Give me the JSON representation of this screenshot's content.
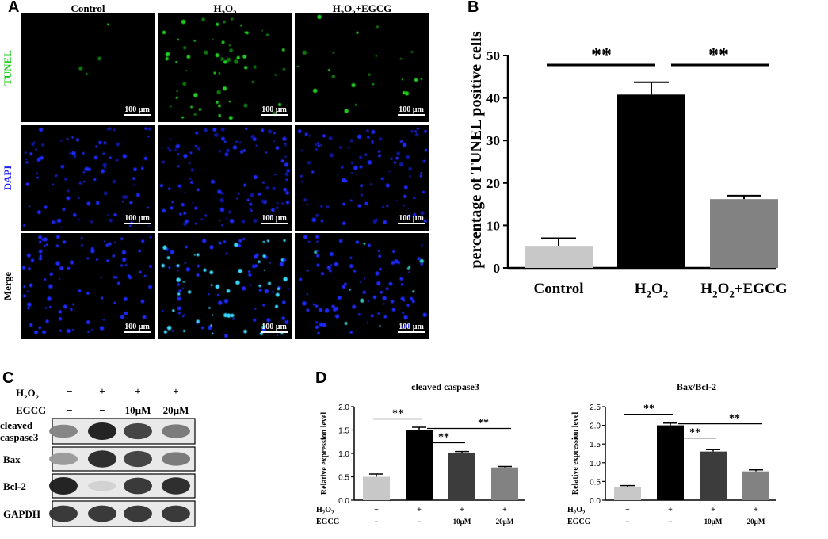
{
  "panels": {
    "a": "A",
    "b": "B",
    "c": "C",
    "d": "D"
  },
  "microscopy": {
    "columns": [
      {
        "base": "Control",
        "sub1": "",
        "mid": "",
        "sub2": "",
        "tail": ""
      },
      {
        "base": "H",
        "sub1": "2",
        "mid": "O",
        "sub2": "2",
        "tail": ""
      },
      {
        "base": "H",
        "sub1": "2",
        "mid": "O",
        "sub2": "2",
        "tail": "+EGCG"
      }
    ],
    "rows": [
      {
        "label": "TUNEL",
        "color": "#22cc22"
      },
      {
        "label": "DAPI",
        "color": "#2020ff"
      },
      {
        "label": "Merge",
        "color": "#000000"
      }
    ],
    "scale_bar": "100 µm"
  },
  "tunel_chart": {
    "type": "bar",
    "categories": [
      {
        "base": "Control",
        "sub1": "",
        "mid": "",
        "sub2": "",
        "tail": ""
      },
      {
        "base": "H",
        "sub1": "2",
        "mid": "O",
        "sub2": "2",
        "tail": ""
      },
      {
        "base": "H",
        "sub1": "2",
        "mid": "O",
        "sub2": "2",
        "tail": "+EGCG"
      }
    ],
    "ylabel": "percentage of TUNEL positive cells",
    "ylim": [
      0,
      50
    ],
    "yticks": [
      "0",
      "10",
      "20",
      "30",
      "40",
      "50"
    ],
    "significance": [
      "**",
      "**"
    ]
  },
  "chart_data": [
    {
      "type": "bar",
      "categories": [
        "Control",
        "H2O2",
        "H2O2+EGCG"
      ],
      "values": [
        5.2,
        40.8,
        16.2
      ],
      "errors": [
        1.8,
        2.9,
        0.8
      ],
      "colors": [
        "#c8c8c8",
        "#000000",
        "#828282"
      ],
      "ylabel": "percentage of TUNEL positive cells",
      "ylim": [
        0,
        50
      ],
      "significance": [
        {
          "from": "Control",
          "to": "H2O2",
          "label": "**"
        },
        {
          "from": "H2O2",
          "to": "H2O2+EGCG",
          "label": "**"
        }
      ]
    },
    {
      "type": "bar",
      "title": "cleaved caspase3",
      "categories": [
        "H2O2 − EGCG −",
        "H2O2 + EGCG −",
        "H2O2 + EGCG 10µM",
        "H2O2 + EGCG 20µM"
      ],
      "values": [
        0.5,
        1.5,
        1.0,
        0.7
      ],
      "errors": [
        0.06,
        0.06,
        0.04,
        0.02
      ],
      "colors": [
        "#c8c8c8",
        "#000000",
        "#3c3c3c",
        "#828282"
      ],
      "ylabel": "Relative expression level",
      "ylim": [
        0,
        2.0
      ],
      "significance": [
        "**",
        "**",
        "**"
      ]
    },
    {
      "type": "bar",
      "title": "Bax/Bcl-2",
      "categories": [
        "H2O2 − EGCG −",
        "H2O2 + EGCG −",
        "H2O2 + EGCG 10µM",
        "H2O2 + EGCG 20µM"
      ],
      "values": [
        0.35,
        2.0,
        1.3,
        0.77
      ],
      "errors": [
        0.04,
        0.06,
        0.05,
        0.04
      ],
      "colors": [
        "#c8c8c8",
        "#000000",
        "#3c3c3c",
        "#828282"
      ],
      "ylabel": "Relative expression level",
      "ylim": [
        0,
        2.5
      ],
      "significance": [
        "**",
        "**",
        "**"
      ]
    }
  ],
  "blot": {
    "h2o2_label": {
      "base": "H",
      "sub1": "2",
      "mid": "O",
      "sub2": "2"
    },
    "egcg_label": "EGCG",
    "h2o2_marks": [
      "−",
      "+",
      "+",
      "+"
    ],
    "egcg_marks": [
      "−",
      "−",
      "10µM",
      "20µM"
    ],
    "bands": [
      {
        "label1": "cleaved",
        "label2": "caspase3"
      },
      {
        "label1": "Bax",
        "label2": ""
      },
      {
        "label1": "Bcl-2",
        "label2": ""
      },
      {
        "label1": "GAPDH",
        "label2": ""
      }
    ],
    "intensity": [
      [
        0.55,
        1.0,
        0.85,
        0.6
      ],
      [
        0.45,
        0.95,
        0.85,
        0.6
      ],
      [
        1.0,
        0.2,
        0.9,
        0.95
      ],
      [
        0.9,
        0.9,
        0.9,
        0.9
      ]
    ]
  },
  "d_charts": [
    {
      "title": "cleaved caspase3",
      "ylabel": "Relative expression level",
      "yticks": [
        "0.0",
        "0.5",
        "1.0",
        "1.5",
        "2.0"
      ],
      "h2o2_marks": [
        "−",
        "+",
        "+",
        "+"
      ],
      "egcg_marks": [
        "−",
        "−",
        "10µM",
        "20µM"
      ],
      "h2o2_label": {
        "base": "H",
        "sub1": "2",
        "mid": "O",
        "sub2": "2"
      },
      "egcg_label": "EGCG"
    },
    {
      "title": "Bax/Bcl-2",
      "ylabel": "Relative expression level",
      "yticks": [
        "0.0",
        "0.5",
        "1.0",
        "1.5",
        "2.0",
        "2.5"
      ],
      "h2o2_marks": [
        "−",
        "+",
        "+",
        "+"
      ],
      "egcg_marks": [
        "−",
        "−",
        "10µM",
        "20µM"
      ],
      "h2o2_label": {
        "base": "H",
        "sub1": "2",
        "mid": "O",
        "sub2": "2"
      },
      "egcg_label": "EGCG"
    }
  ]
}
